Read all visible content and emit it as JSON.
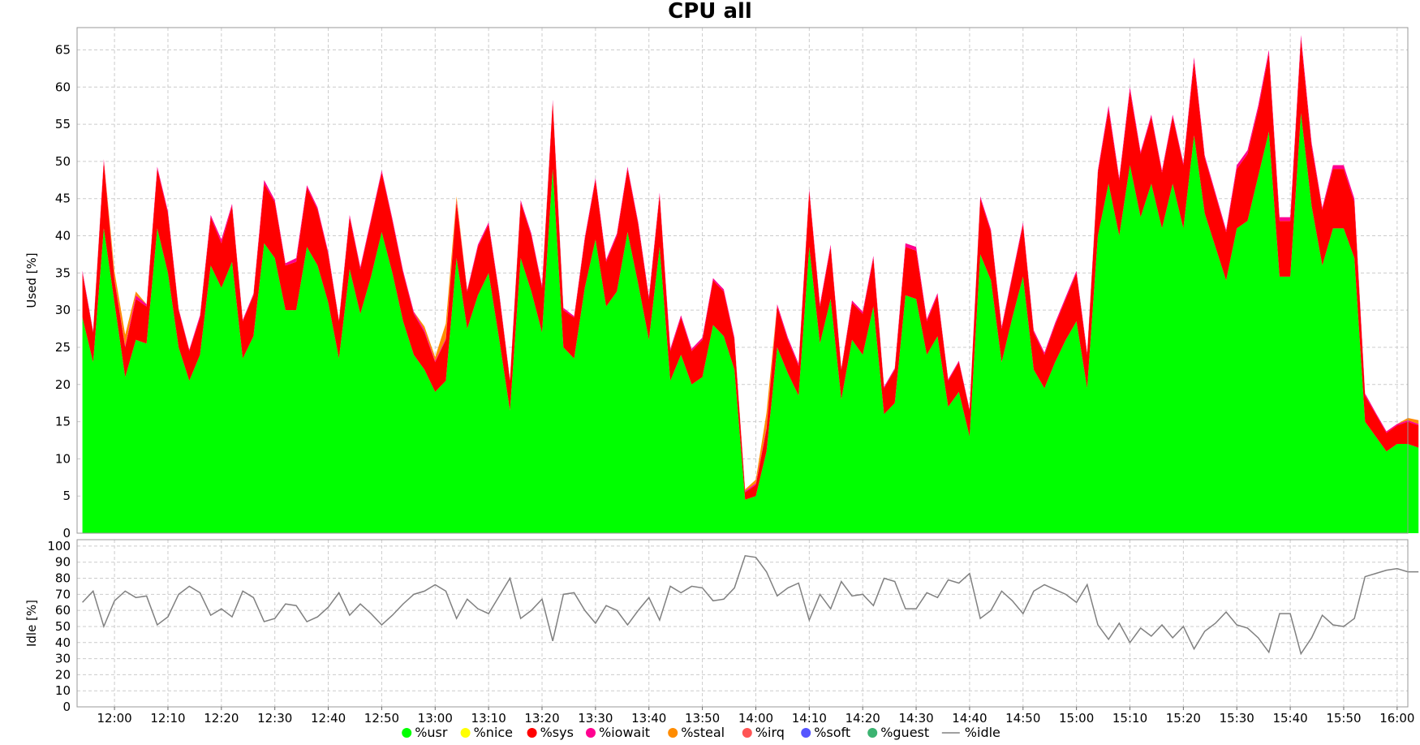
{
  "chart_data": {
    "title": "CPU all",
    "type": "area",
    "x_labels": [
      "12:00",
      "12:10",
      "12:20",
      "12:30",
      "12:40",
      "12:50",
      "13:00",
      "13:10",
      "13:20",
      "13:30",
      "13:40",
      "13:50",
      "14:00",
      "14:10",
      "14:20",
      "14:30",
      "14:40",
      "14:50",
      "15:00",
      "15:10",
      "15:20",
      "15:30",
      "15:40",
      "15:50",
      "16:00"
    ],
    "x_range": [
      "11:53",
      "16:02"
    ],
    "interval_minutes": 2,
    "grid": true,
    "legend_position": "bottom",
    "panels": [
      {
        "name": "used",
        "type": "stacked-area",
        "ylabel": "Used [%]",
        "ylim": [
          0,
          68
        ],
        "yticks": [
          0,
          5,
          10,
          15,
          20,
          25,
          30,
          35,
          40,
          45,
          50,
          55,
          60,
          65
        ]
      },
      {
        "name": "idle",
        "type": "line",
        "ylabel": "Idle [%]",
        "ylim": [
          0,
          104
        ],
        "yticks": [
          0,
          10,
          20,
          30,
          40,
          50,
          60,
          70,
          80,
          90,
          100
        ]
      }
    ],
    "series": [
      {
        "name": "%usr",
        "color": "#00ff00",
        "panel": "used",
        "values": [
          29,
          23,
          41,
          31,
          21,
          26,
          25.5,
          41,
          35,
          25,
          20.5,
          24,
          36,
          33,
          36.5,
          23.5,
          26.5,
          39,
          37,
          30,
          30,
          38.5,
          36,
          31,
          23.5,
          35.5,
          29.5,
          34.5,
          40.5,
          35,
          28.5,
          24,
          22,
          19,
          20.5,
          37,
          27.5,
          32,
          35,
          26,
          16.5,
          37,
          32.5,
          27,
          49,
          25,
          23.5,
          33,
          39.5,
          30.5,
          32.5,
          40.5,
          33.5,
          26,
          38.5,
          20.5,
          24,
          20,
          21,
          28,
          26.5,
          22,
          4.5,
          5,
          11,
          25,
          21.5,
          18.5,
          38.5,
          25.5,
          31.5,
          18,
          26,
          24,
          30.5,
          16,
          17.5,
          32,
          31.5,
          24,
          26.5,
          17,
          19,
          13,
          37.5,
          34,
          23,
          29,
          34.5,
          22,
          19.5,
          23,
          26,
          28.5,
          19.5,
          40,
          47,
          40,
          49.5,
          42.5,
          47,
          41,
          47,
          41,
          53.5,
          43,
          38.5,
          34,
          41,
          42,
          48,
          54,
          34.5,
          34.5,
          56.5,
          44,
          36,
          41,
          41,
          37,
          15,
          13,
          11,
          12,
          12,
          11.5
        ]
      },
      {
        "name": "%nice",
        "color": "#ffff00",
        "panel": "used",
        "values": [
          0,
          0,
          0,
          0,
          0,
          0,
          0,
          0,
          0,
          0,
          0,
          0,
          0,
          0,
          0,
          0,
          0,
          0,
          0,
          0,
          0,
          0,
          0,
          0,
          0,
          0,
          0,
          0,
          0,
          0,
          0,
          0,
          0,
          0,
          0,
          0,
          0,
          0,
          0,
          0,
          0,
          0,
          0,
          0,
          0,
          0,
          0,
          0,
          0,
          0,
          0,
          0,
          0,
          0,
          0,
          0,
          0,
          0,
          0,
          0,
          0,
          0,
          0,
          0,
          0,
          0,
          0,
          0,
          0,
          0,
          0,
          0,
          0,
          0,
          0,
          0,
          0,
          0,
          0,
          0,
          0,
          0,
          0,
          0,
          0,
          0,
          0,
          0,
          0,
          0,
          0,
          0,
          0,
          0,
          0,
          0,
          0,
          0,
          0,
          0,
          0,
          0,
          0,
          0,
          0,
          0,
          0,
          0,
          0,
          0,
          0,
          0,
          0,
          0,
          0,
          0,
          0,
          0,
          0,
          0,
          0,
          0,
          0,
          0,
          0,
          0
        ]
      },
      {
        "name": "%sys",
        "color": "#ff0000",
        "panel": "used",
        "values": [
          6,
          4,
          9,
          3,
          4,
          5.5,
          5,
          8,
          8,
          5,
          4,
          5,
          6.5,
          6,
          7.5,
          5,
          5.5,
          8,
          7.5,
          6,
          6.5,
          8,
          7.5,
          6.5,
          5,
          7,
          6,
          7.5,
          8,
          7,
          6.5,
          5.5,
          5,
          4,
          5.5,
          7.5,
          5,
          6.5,
          6.5,
          6,
          4,
          7.5,
          7.5,
          6,
          9,
          5,
          5.5,
          6.5,
          8,
          6,
          7.5,
          8.5,
          8,
          5.5,
          7,
          4,
          5,
          4.5,
          5,
          6,
          6,
          4,
          1,
          1.5,
          3,
          5.5,
          4.5,
          4,
          7.5,
          5,
          7,
          4,
          5,
          5.5,
          6.5,
          3.5,
          4.5,
          6.5,
          6.5,
          4.5,
          5.5,
          3.5,
          4,
          3.5,
          7.5,
          6.5,
          4.5,
          5.5,
          7,
          5,
          4.5,
          5,
          5.5,
          6.5,
          4.5,
          8.5,
          10,
          7.5,
          10,
          8.5,
          9,
          7.5,
          9,
          8.5,
          10,
          7.5,
          7,
          6.5,
          8,
          9,
          9,
          10.5,
          7.5,
          7.5,
          10,
          8,
          7.5,
          8,
          8,
          7.5,
          3.5,
          3,
          2.5,
          2.5,
          3,
          3
        ]
      },
      {
        "name": "%iowait",
        "color": "#ff0090",
        "panel": "used",
        "values": [
          0.3,
          0.2,
          0.3,
          0.2,
          0.2,
          0.5,
          0.3,
          0.3,
          0.3,
          0.2,
          0.2,
          0.3,
          0.3,
          0.5,
          0.3,
          0.2,
          0.2,
          0.5,
          0.3,
          0.3,
          0.5,
          0.3,
          0.3,
          0.3,
          0.2,
          0.3,
          0.3,
          0.3,
          0.3,
          0.3,
          0.3,
          0.3,
          0.3,
          0.2,
          0.2,
          0.3,
          0.2,
          0.3,
          0.3,
          0.3,
          0.2,
          0.3,
          0.3,
          0.3,
          0.3,
          0.3,
          0.2,
          0.3,
          0.3,
          0.3,
          0.3,
          0.3,
          0.3,
          0.3,
          0.3,
          0.3,
          0.3,
          0.3,
          0.3,
          0.3,
          0.3,
          0.3,
          0.2,
          0.2,
          0.2,
          0.3,
          0.3,
          0.3,
          0.3,
          0.3,
          0.3,
          0.2,
          0.3,
          0.3,
          0.3,
          0.2,
          0.2,
          0.5,
          0.5,
          0.3,
          0.3,
          0.2,
          0.2,
          0.2,
          0.3,
          0.3,
          0.3,
          0.3,
          0.3,
          0.3,
          0.3,
          0.3,
          0.3,
          0.3,
          0.3,
          0.3,
          0.5,
          0.3,
          0.5,
          0.3,
          0.3,
          0.3,
          0.3,
          0.3,
          0.5,
          0.3,
          0.3,
          0.3,
          0.5,
          0.5,
          0.5,
          0.5,
          0.5,
          0.5,
          0.5,
          0.5,
          0.3,
          0.5,
          0.5,
          0.5,
          0.3,
          0.2,
          0.2,
          0.2,
          0.2,
          0.2
        ]
      },
      {
        "name": "%steal",
        "color": "#ff8c00",
        "panel": "used",
        "values": [
          0,
          0,
          0,
          1,
          1.5,
          0.5,
          0,
          0,
          0,
          0,
          0,
          0,
          0,
          0,
          0,
          0,
          0,
          0,
          0,
          0,
          0,
          0,
          0,
          0,
          0,
          0,
          0,
          0,
          0,
          0,
          0,
          0,
          0.5,
          0.5,
          2,
          0.5,
          0,
          0,
          0,
          0,
          0,
          0,
          0,
          0,
          0,
          0,
          0,
          0,
          0,
          0,
          0,
          0,
          0,
          0,
          0,
          0,
          0,
          0,
          0,
          0,
          0,
          0,
          0.2,
          0.5,
          2,
          0,
          0,
          0,
          0,
          0,
          0,
          0,
          0,
          0,
          0,
          0,
          0,
          0,
          0,
          0,
          0,
          0,
          0,
          0,
          0,
          0,
          0,
          0,
          0,
          0,
          0,
          0,
          0,
          0,
          0,
          0,
          0,
          0,
          0,
          0,
          0,
          0,
          0,
          0,
          0,
          0,
          0,
          0,
          0,
          0,
          0,
          0,
          0,
          0,
          0,
          0,
          0,
          0,
          0,
          0,
          0,
          0,
          0,
          0,
          0.3,
          0.5
        ]
      },
      {
        "name": "%irq",
        "color": "#ff5555",
        "panel": "used",
        "values": []
      },
      {
        "name": "%soft",
        "color": "#5555ff",
        "panel": "used",
        "values": []
      },
      {
        "name": "%guest",
        "color": "#3cb371",
        "panel": "used",
        "values": []
      },
      {
        "name": "%idle",
        "color": "#808080",
        "panel": "idle",
        "values": [
          65,
          72,
          50,
          66,
          72,
          68,
          69,
          51,
          56,
          70,
          75,
          71,
          57,
          61,
          56,
          72,
          68,
          53,
          55,
          64,
          63,
          53,
          56,
          62,
          71,
          57,
          64,
          58,
          51,
          57,
          64,
          70,
          72,
          76,
          72,
          55,
          67,
          61,
          58,
          69,
          80,
          55,
          60,
          67,
          41,
          70,
          71,
          60,
          52,
          63,
          60,
          51,
          60,
          68,
          54,
          75,
          71,
          75,
          74,
          66,
          67,
          74,
          94,
          93,
          84,
          69,
          74,
          77,
          54,
          70,
          61,
          78,
          69,
          70,
          63,
          80,
          78,
          61,
          61,
          71,
          68,
          79,
          77,
          83,
          55,
          60,
          72,
          66,
          58,
          72,
          76,
          73,
          70,
          65,
          76,
          51,
          42,
          52,
          40,
          49,
          44,
          51,
          43,
          50,
          36,
          47,
          52,
          59,
          51,
          49,
          43,
          34,
          58,
          58,
          33,
          43,
          57,
          51,
          50,
          55,
          81,
          83,
          85,
          86,
          84,
          84
        ]
      }
    ]
  },
  "legend": {
    "items": [
      {
        "label": "%usr",
        "color": "#00ff00",
        "kind": "dot"
      },
      {
        "label": "%nice",
        "color": "#ffff00",
        "kind": "dot"
      },
      {
        "label": "%sys",
        "color": "#ff0000",
        "kind": "dot"
      },
      {
        "label": "%iowait",
        "color": "#ff0090",
        "kind": "dot"
      },
      {
        "label": "%steal",
        "color": "#ff8c00",
        "kind": "dot"
      },
      {
        "label": "%irq",
        "color": "#ff5555",
        "kind": "dot"
      },
      {
        "label": "%soft",
        "color": "#5555ff",
        "kind": "dot"
      },
      {
        "label": "%guest",
        "color": "#3cb371",
        "kind": "dot"
      },
      {
        "label": "%idle",
        "color": "#808080",
        "kind": "line"
      }
    ]
  }
}
